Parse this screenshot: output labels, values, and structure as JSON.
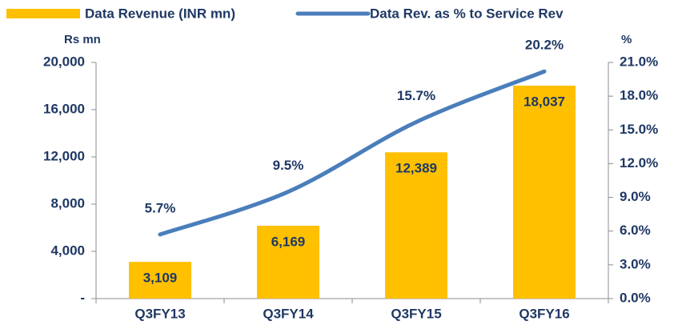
{
  "chart_data": {
    "type": "bar-line",
    "categories": [
      "Q3FY13",
      "Q3FY14",
      "Q3FY15",
      "Q3FY16"
    ],
    "series": [
      {
        "name": "Data Revenue (INR mn)",
        "type": "bar",
        "color": "#FFC000",
        "values": [
          3109,
          6169,
          12389,
          18037
        ],
        "value_labels": [
          "3,109",
          "6,169",
          "12,389",
          "18,037"
        ]
      },
      {
        "name": "Data Rev. as % to Service Rev",
        "type": "line",
        "axis": "y2",
        "color": "#4A7EBB",
        "values": [
          5.7,
          9.5,
          15.7,
          20.2
        ],
        "value_labels": [
          "5.7%",
          "9.5%",
          "15.7%",
          "20.2%"
        ]
      }
    ],
    "ylabel": "Rs mn",
    "y2label": "%",
    "ylim": [
      0,
      20000
    ],
    "yticks": [
      {
        "value": 0,
        "label": "-"
      },
      {
        "value": 4000,
        "label": "4,000"
      },
      {
        "value": 8000,
        "label": "8,000"
      },
      {
        "value": 12000,
        "label": "12,000"
      },
      {
        "value": 16000,
        "label": "16,000"
      },
      {
        "value": 20000,
        "label": "20,000"
      }
    ],
    "y2lim": [
      0,
      21
    ],
    "y2ticks": [
      {
        "value": 0,
        "label": "0.0%"
      },
      {
        "value": 3,
        "label": "3.0%"
      },
      {
        "value": 6,
        "label": "6.0%"
      },
      {
        "value": 9,
        "label": "9.0%"
      },
      {
        "value": 12,
        "label": "12.0%"
      },
      {
        "value": 15,
        "label": "15.0%"
      },
      {
        "value": 18,
        "label": "18.0%"
      },
      {
        "value": 21,
        "label": "21.0%"
      }
    ],
    "legend": "top"
  }
}
